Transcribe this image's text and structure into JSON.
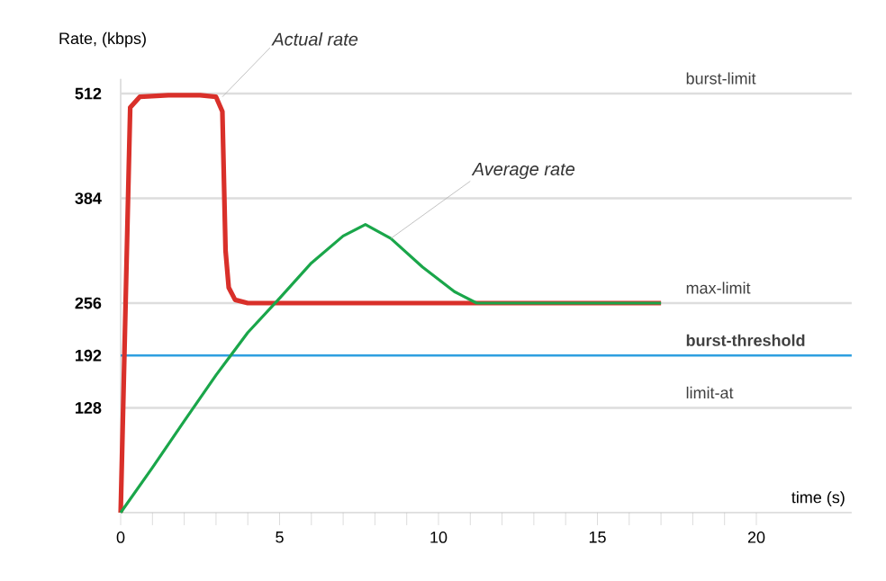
{
  "chart_data": {
    "type": "line",
    "xlabel": "time (s)",
    "ylabel": "Rate, (kbps)",
    "xlim": [
      0,
      23
    ],
    "xticks": [
      0,
      5,
      10,
      15,
      20
    ],
    "ylim": [
      0,
      530
    ],
    "yticks": [
      128,
      192,
      256,
      384,
      512
    ],
    "grid": false,
    "marker": "none",
    "line_style": "solid",
    "series": [
      {
        "color": "#d9302a",
        "x": [
          0,
          0.3,
          0.6,
          1.5,
          2.5,
          3.0,
          3.2,
          3.3,
          3.4,
          3.6,
          4.0,
          17
        ],
        "values": [
          0,
          495,
          508,
          510,
          510,
          508,
          490,
          320,
          275,
          260,
          256,
          256
        ]
      },
      {
        "color": "#1aa64a",
        "x": [
          0,
          1,
          2,
          3,
          4,
          5,
          6,
          7,
          7.7,
          8.5,
          9.5,
          10.5,
          11.2,
          17
        ],
        "values": [
          0,
          55,
          112,
          168,
          220,
          262,
          305,
          338,
          352,
          335,
          300,
          270,
          256,
          256
        ]
      }
    ],
    "ref_lines": [
      {
        "axis": "y",
        "value": 512,
        "label": "burst-limit",
        "color": "#dddddd"
      },
      {
        "axis": "y",
        "value": 384,
        "color": "#dddddd"
      },
      {
        "axis": "y",
        "value": 256,
        "label": "max-limit",
        "color": "#dddddd"
      },
      {
        "axis": "y",
        "value": 192,
        "label": "**burst-threshold**",
        "color": "#2e9fe0"
      },
      {
        "axis": "y",
        "value": 128,
        "label": "limit-at",
        "color": "#dddddd"
      }
    ],
    "annotations": [
      {
        "text": "Actual rate",
        "x": 3.2,
        "y": 508
      },
      {
        "text": "Average rate",
        "x": 8.5,
        "y": 335
      }
    ]
  }
}
